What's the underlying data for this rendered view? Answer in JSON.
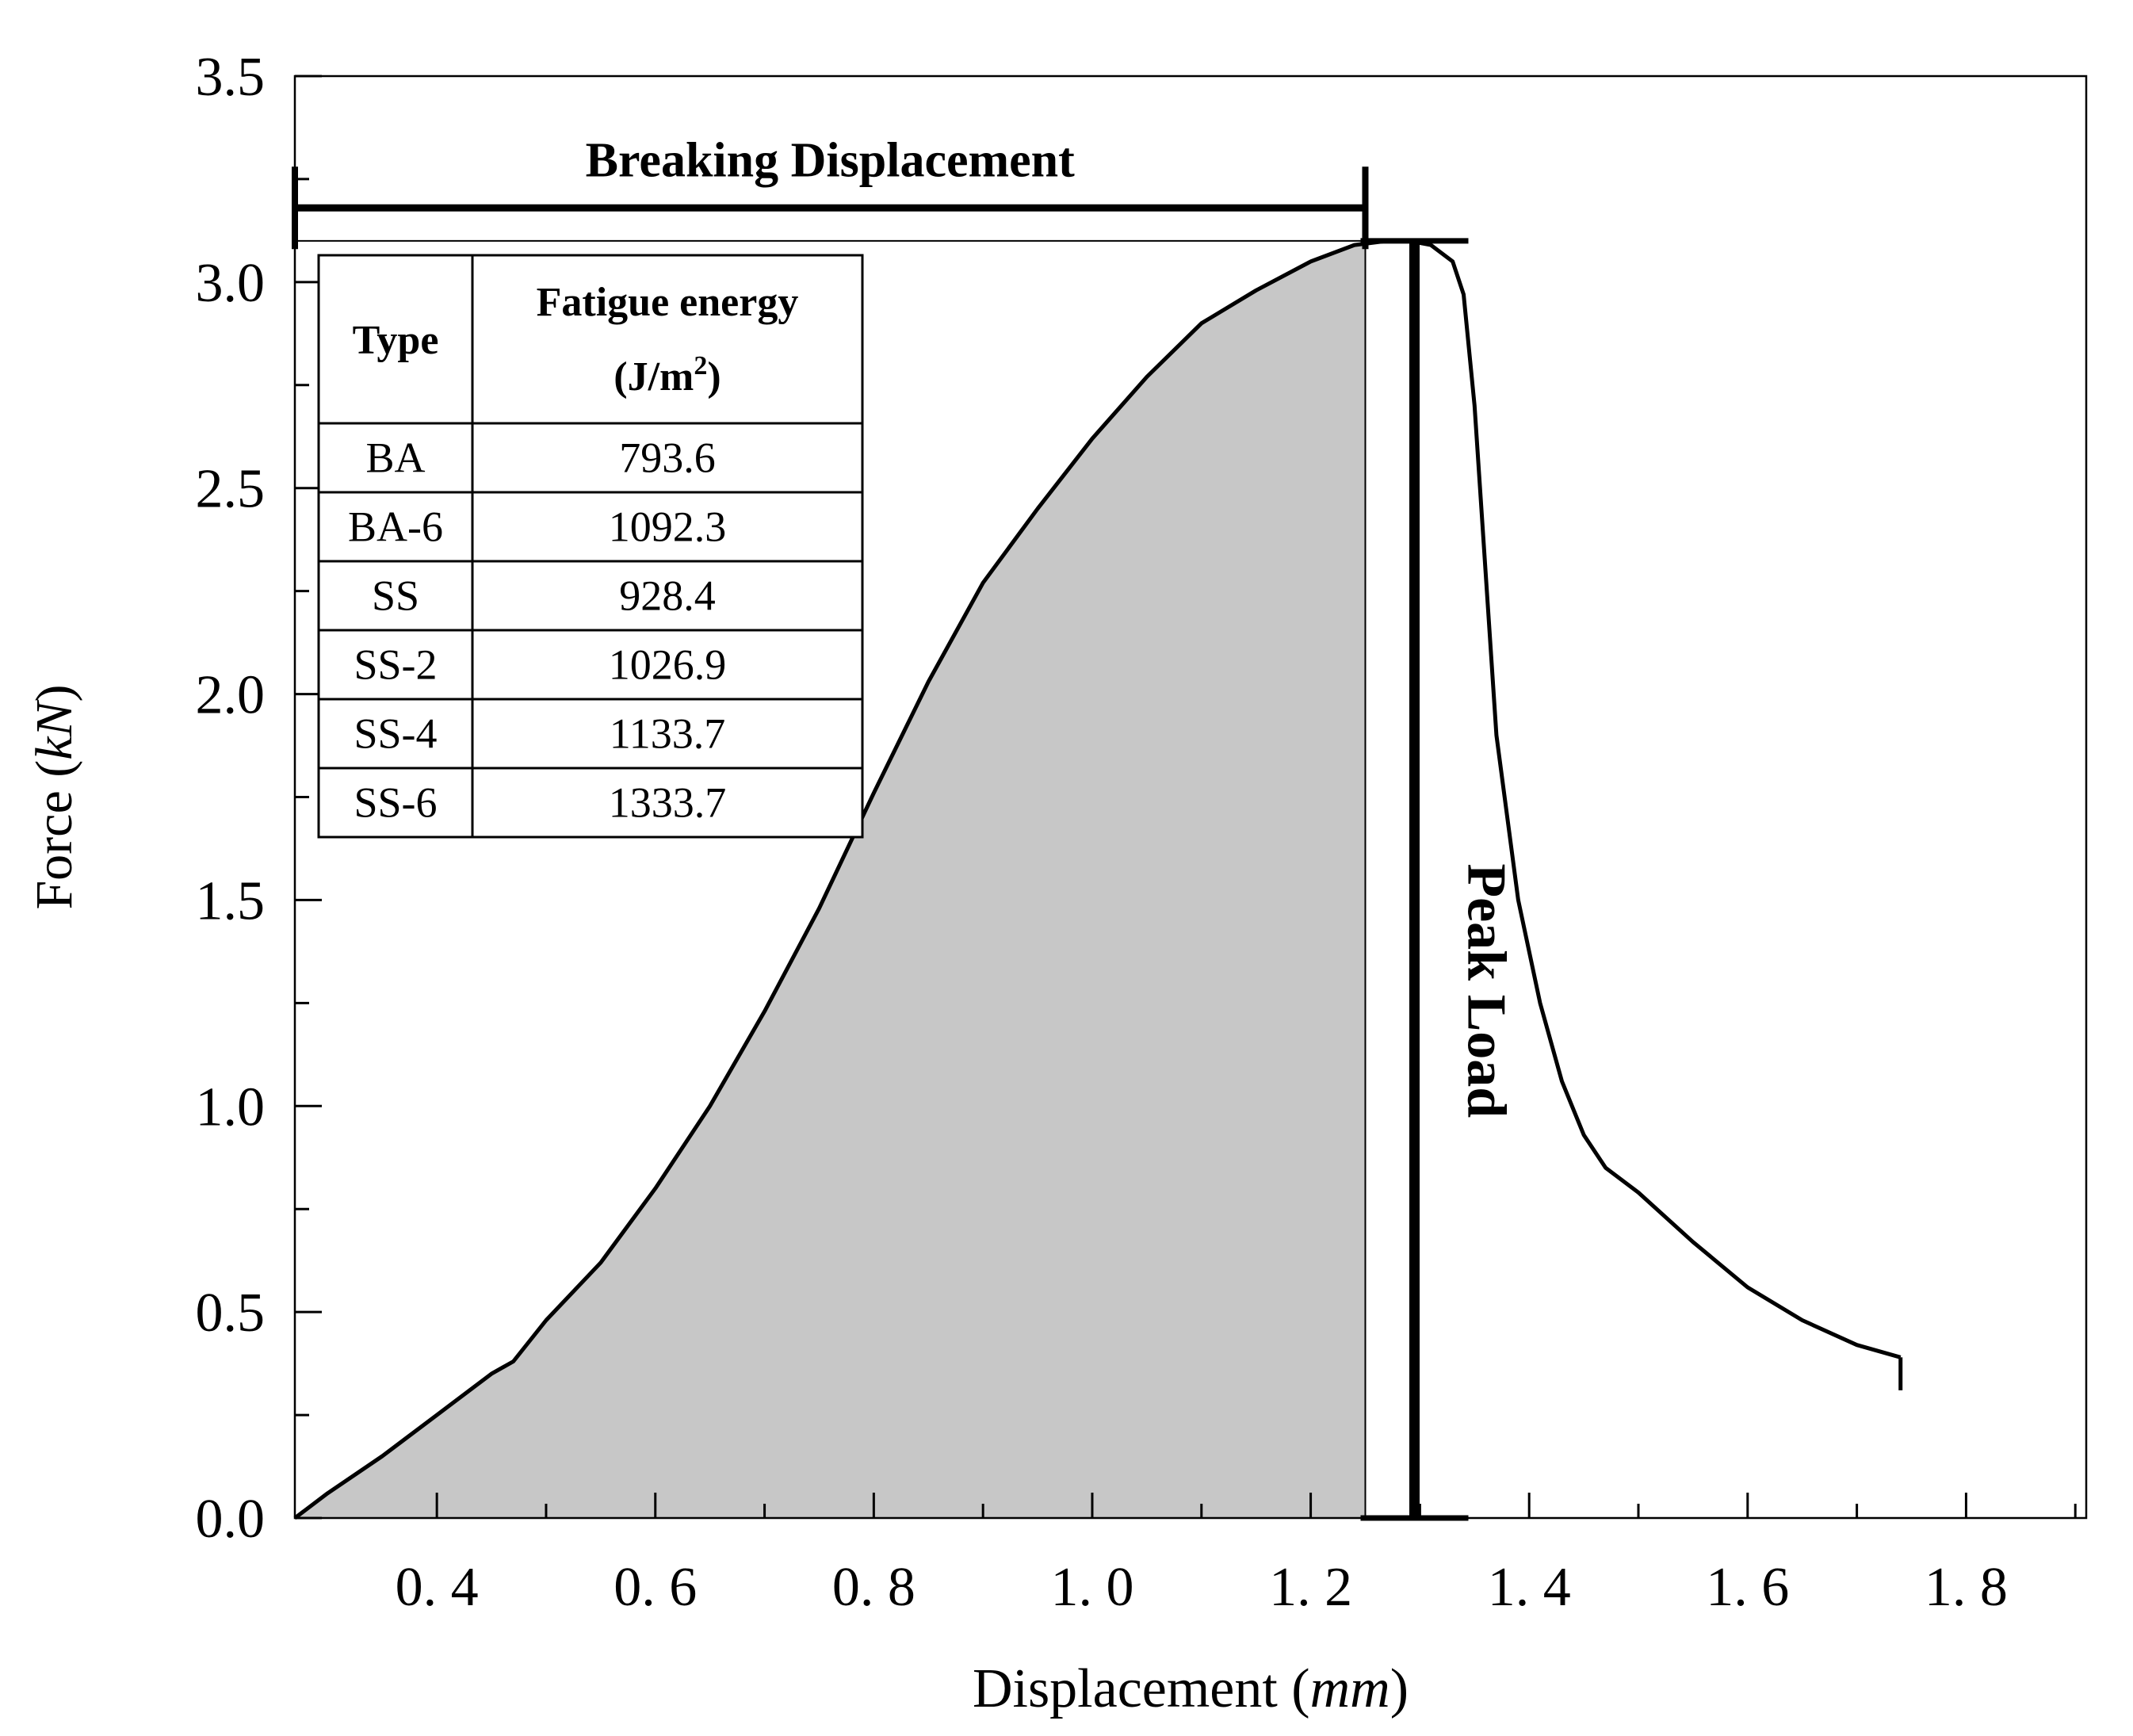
{
  "chart_data": {
    "type": "line",
    "title": "",
    "xlabel": {
      "prefix": "Displacement (",
      "unit": "mm",
      "suffix": ")"
    },
    "ylabel": {
      "prefix": "Force (",
      "unit": "kN",
      "suffix": ")"
    },
    "xlim": [
      0.27,
      1.91
    ],
    "ylim": [
      0.0,
      3.5
    ],
    "x_ticks": [
      0.4,
      0.6,
      0.8,
      1.0,
      1.2,
      1.4,
      1.6,
      1.8
    ],
    "x_tick_labels": [
      "0. 4",
      "0. 6",
      "0. 8",
      "1. 0",
      "1. 2",
      "1. 4",
      "1. 6",
      "1. 8"
    ],
    "y_ticks": [
      0.0,
      0.5,
      1.0,
      1.5,
      2.0,
      2.5,
      3.0,
      3.5
    ],
    "y_tick_labels": [
      "0.0",
      "0.5",
      "1.0",
      "1.5",
      "2.0",
      "2.5",
      "3.0",
      "3.5"
    ],
    "series": [
      {
        "name": "Force-displacement curve",
        "x": [
          0.27,
          0.3,
          0.35,
          0.4,
          0.45,
          0.47,
          0.5,
          0.55,
          0.6,
          0.65,
          0.7,
          0.75,
          0.8,
          0.85,
          0.9,
          0.95,
          1.0,
          1.05,
          1.1,
          1.15,
          1.2,
          1.24,
          1.27,
          1.29,
          1.31,
          1.33,
          1.34,
          1.35,
          1.37,
          1.39,
          1.41,
          1.43,
          1.45,
          1.47,
          1.5,
          1.55,
          1.6,
          1.65,
          1.7,
          1.74
        ],
        "y": [
          0.0,
          0.06,
          0.15,
          0.25,
          0.35,
          0.38,
          0.48,
          0.62,
          0.8,
          1.0,
          1.23,
          1.48,
          1.76,
          2.03,
          2.27,
          2.45,
          2.62,
          2.77,
          2.9,
          2.98,
          3.05,
          3.09,
          3.1,
          3.1,
          3.09,
          3.05,
          2.97,
          2.7,
          1.9,
          1.5,
          1.25,
          1.06,
          0.93,
          0.85,
          0.79,
          0.67,
          0.56,
          0.48,
          0.42,
          0.39
        ]
      }
    ],
    "shaded_area": {
      "x_start": 0.27,
      "x_end": 1.25,
      "fill": "#c7c7c7",
      "meaning": "fatigue energy (area under curve up to breaking displacement)"
    },
    "annotations": {
      "breaking_displacement": {
        "label": "Breaking Displacement",
        "x_start": 0.27,
        "x_end": 1.25,
        "y": 3.18
      },
      "peak_load": {
        "label": "Peak Load",
        "x": 1.295,
        "y_start": 0.0,
        "y_end": 3.1
      },
      "peak_guide": {
        "x_start": 0.27,
        "x_end": 1.25,
        "y": 3.1
      }
    },
    "table": {
      "headers": {
        "type": "Type",
        "energy_title": "Fatigue energy",
        "energy_unit_open": "(J/m",
        "energy_unit_sup": "2",
        "energy_unit_close": ")"
      },
      "rows": [
        {
          "type": "BA",
          "energy": "793.6"
        },
        {
          "type": "BA-6",
          "energy": "1092.3"
        },
        {
          "type": "SS",
          "energy": "928.4"
        },
        {
          "type": "SS-2",
          "energy": "1026.9"
        },
        {
          "type": "SS-4",
          "energy": "1133.7"
        },
        {
          "type": "SS-6",
          "energy": "1333.7"
        }
      ]
    },
    "colors": {
      "line": "#000000",
      "fill": "#c7c7c7",
      "background": "#ffffff"
    },
    "grid": false,
    "legend": "none"
  }
}
